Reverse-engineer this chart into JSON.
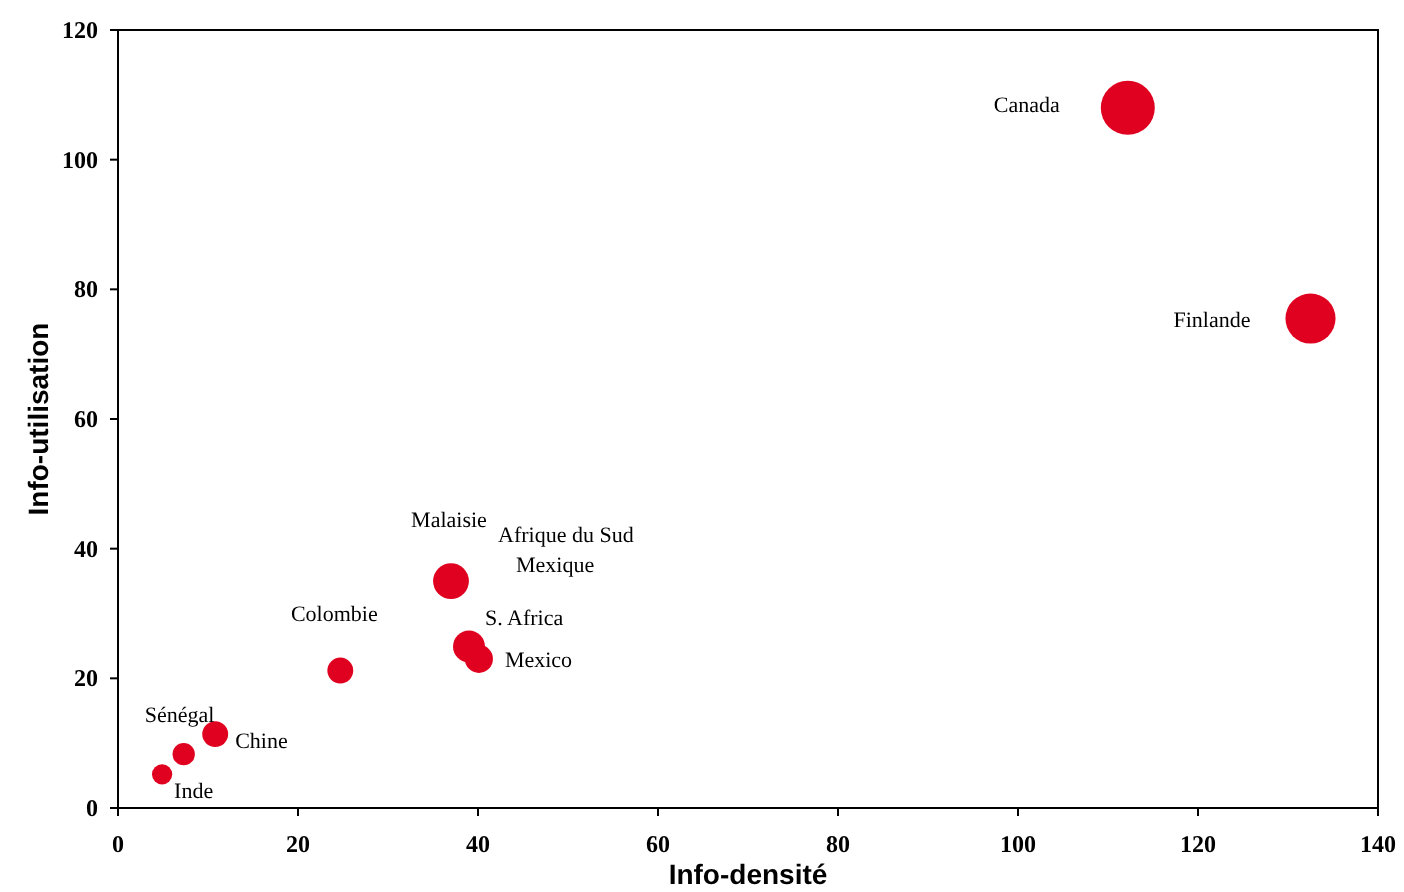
{
  "chart_data": {
    "type": "bubble",
    "xlabel": "Info-densité",
    "ylabel": "Info-utilisation",
    "xlim": [
      0,
      140
    ],
    "xticks": [
      0,
      20,
      40,
      60,
      80,
      100,
      120,
      140
    ],
    "ylim": [
      0,
      120
    ],
    "yticks": [
      0,
      20,
      40,
      60,
      80,
      100,
      120
    ],
    "grid": false,
    "x": [
      112.2,
      132.5,
      37.0,
      39.0,
      40.1,
      24.7,
      10.8,
      7.3,
      4.9
    ],
    "series": [
      {
        "color": "#e0001f",
        "values": [
          108.0,
          75.5,
          35.0,
          24.9,
          23.0,
          21.2,
          11.4,
          8.3,
          5.2
        ],
        "sizes": [
          1,
          0.86,
          0.44,
          0.35,
          0.27,
          0.23,
          0.23,
          0.17,
          0.14
        ],
        "value_labels": [
          "Canada",
          "Finlande",
          "Malaisie",
          "S. Africa",
          "Mexico",
          "Colombie",
          "Chine",
          "Sénégal",
          "Inde"
        ]
      }
    ],
    "annotations": [
      "Afrique du Sud",
      "Mexique"
    ]
  }
}
